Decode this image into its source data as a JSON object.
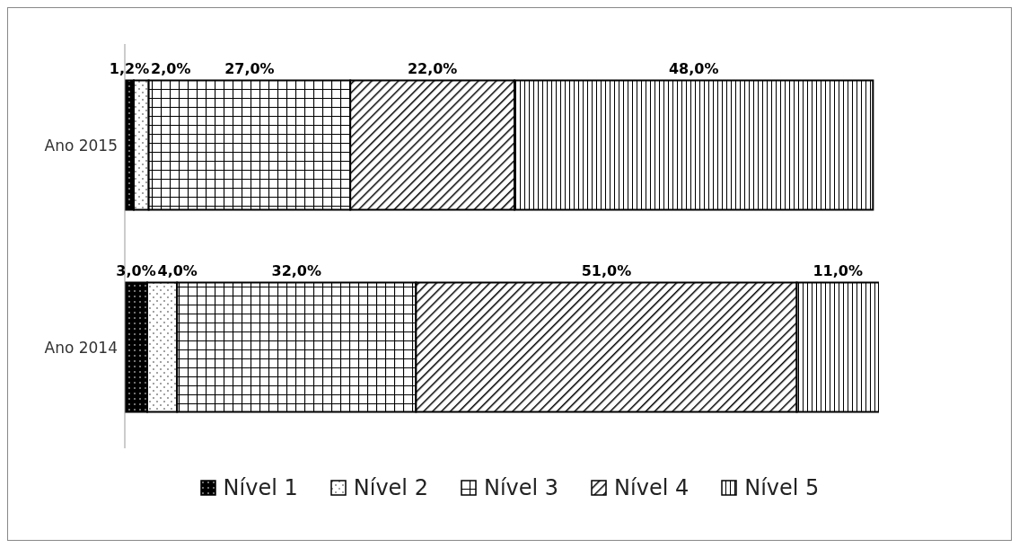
{
  "chart_data": {
    "type": "bar",
    "orientation": "horizontal",
    "stacked": true,
    "categories": [
      "Ano 2015",
      "Ano 2014"
    ],
    "tick_labels": "y",
    "legend": "bottom",
    "grid": false,
    "series": [
      {
        "name": "Nível 1",
        "color": "#000000",
        "values": [
          1.2,
          3.0
        ],
        "value_labels": [
          "1,2%",
          "3,0%"
        ]
      },
      {
        "name": "Nível 2",
        "color": "#000000",
        "values": [
          2.0,
          4.0
        ],
        "value_labels": [
          "2,0%",
          "4,0%"
        ]
      },
      {
        "name": "Nível 3",
        "color": "#000000",
        "values": [
          27.0,
          32.0
        ],
        "value_labels": [
          "27,0%",
          "32,0%"
        ]
      },
      {
        "name": "Nível 4",
        "color": "#000000",
        "values": [
          22.0,
          51.0
        ],
        "value_labels": [
          "22,0%",
          "51,0%"
        ]
      },
      {
        "name": "Nível 5",
        "color": "#000000",
        "values": [
          48.0,
          11.0
        ],
        "value_labels": [
          "48,0%",
          "11,0%"
        ]
      }
    ]
  }
}
